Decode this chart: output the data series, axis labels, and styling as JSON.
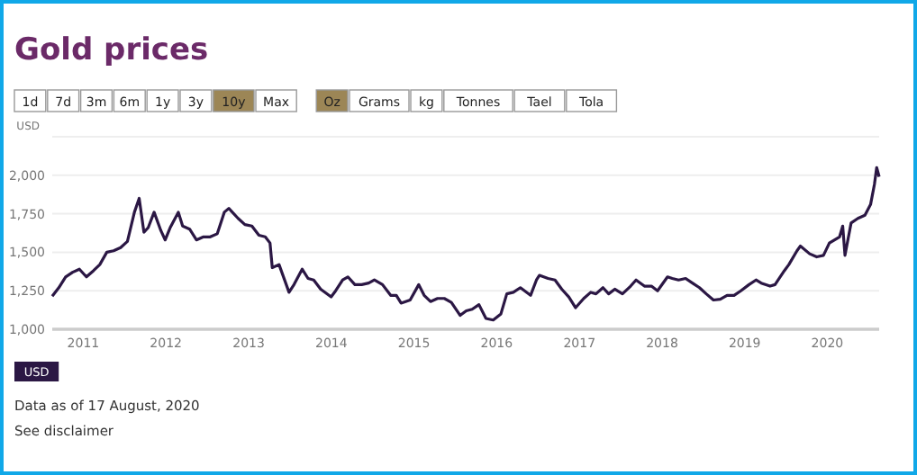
{
  "chart_data": {
    "type": "line",
    "title": "Gold prices",
    "ylabel": "USD",
    "annotations": [
      "1d",
      "7d",
      "3m",
      "6m",
      "1y",
      "3y",
      "10y",
      "Max",
      "Oz",
      "Grams",
      "kg",
      "Tonnes",
      "Tael",
      "Tola",
      "USD",
      "Data as of 17 August, 2020",
      "See disclaimer"
    ],
    "x": [
      "2010-08-17",
      "2010-09-15",
      "2010-10-15",
      "2010-11-15",
      "2010-12-15",
      "2011-01-15",
      "2011-02-15",
      "2011-03-15",
      "2011-04-15",
      "2011-05-15",
      "2011-06-15",
      "2011-07-15",
      "2011-08-15",
      "2011-09-05",
      "2011-09-26",
      "2011-10-15",
      "2011-11-10",
      "2011-12-10",
      "2011-12-29",
      "2012-01-20",
      "2012-02-25",
      "2012-03-15",
      "2012-04-15",
      "2012-05-15",
      "2012-06-15",
      "2012-07-15",
      "2012-08-15",
      "2012-09-15",
      "2012-10-05",
      "2012-11-15",
      "2012-12-15",
      "2013-01-15",
      "2013-02-15",
      "2013-03-15",
      "2013-04-05",
      "2013-04-15",
      "2013-05-15",
      "2013-06-28",
      "2013-07-20",
      "2013-08-25",
      "2013-09-20",
      "2013-10-15",
      "2013-11-15",
      "2013-12-31",
      "2014-01-20",
      "2014-02-20",
      "2014-03-15",
      "2014-04-15",
      "2014-05-15",
      "2014-06-15",
      "2014-07-10",
      "2014-08-15",
      "2014-09-20",
      "2014-10-15",
      "2014-11-05",
      "2014-12-15",
      "2015-01-22",
      "2015-02-15",
      "2015-03-15",
      "2015-04-15",
      "2015-05-15",
      "2015-06-15",
      "2015-07-24",
      "2015-08-20",
      "2015-09-15",
      "2015-10-15",
      "2015-11-15",
      "2015-12-17",
      "2016-01-20",
      "2016-02-15",
      "2016-03-15",
      "2016-04-15",
      "2016-05-30",
      "2016-06-25",
      "2016-07-08",
      "2016-08-15",
      "2016-09-15",
      "2016-10-15",
      "2016-11-15",
      "2016-12-15",
      "2017-01-20",
      "2017-02-20",
      "2017-03-15",
      "2017-04-15",
      "2017-05-10",
      "2017-06-06",
      "2017-07-10",
      "2017-08-15",
      "2017-09-08",
      "2017-10-15",
      "2017-11-15",
      "2017-12-12",
      "2018-01-25",
      "2018-02-15",
      "2018-03-15",
      "2018-04-15",
      "2018-05-15",
      "2018-06-15",
      "2018-07-15",
      "2018-08-16",
      "2018-09-15",
      "2018-10-15",
      "2018-11-15",
      "2018-12-15",
      "2019-01-20",
      "2019-02-20",
      "2019-03-15",
      "2019-04-23",
      "2019-05-15",
      "2019-06-25",
      "2019-07-15",
      "2019-08-20",
      "2019-09-04",
      "2019-10-15",
      "2019-11-15",
      "2019-12-15",
      "2020-01-10",
      "2020-02-24",
      "2020-03-09",
      "2020-03-19",
      "2020-04-15",
      "2020-05-15",
      "2020-06-15",
      "2020-07-10",
      "2020-07-27",
      "2020-08-06",
      "2020-08-17"
    ],
    "series": [
      {
        "color": "#2b1744",
        "values": [
          1215,
          1270,
          1340,
          1370,
          1390,
          1340,
          1380,
          1420,
          1500,
          1510,
          1530,
          1570,
          1760,
          1850,
          1630,
          1660,
          1760,
          1640,
          1580,
          1660,
          1760,
          1670,
          1650,
          1580,
          1600,
          1600,
          1620,
          1760,
          1785,
          1720,
          1680,
          1670,
          1610,
          1600,
          1560,
          1400,
          1420,
          1240,
          1290,
          1390,
          1330,
          1320,
          1260,
          1210,
          1250,
          1320,
          1340,
          1290,
          1290,
          1300,
          1320,
          1290,
          1220,
          1220,
          1170,
          1190,
          1290,
          1220,
          1180,
          1200,
          1200,
          1175,
          1090,
          1120,
          1130,
          1160,
          1070,
          1060,
          1100,
          1230,
          1240,
          1270,
          1220,
          1320,
          1350,
          1330,
          1320,
          1260,
          1210,
          1140,
          1200,
          1240,
          1230,
          1270,
          1230,
          1260,
          1230,
          1280,
          1320,
          1280,
          1280,
          1250,
          1340,
          1330,
          1320,
          1330,
          1300,
          1270,
          1230,
          1190,
          1195,
          1220,
          1220,
          1250,
          1290,
          1320,
          1300,
          1280,
          1290,
          1380,
          1420,
          1510,
          1540,
          1490,
          1470,
          1480,
          1560,
          1600,
          1670,
          1480,
          1690,
          1720,
          1740,
          1810,
          1940,
          2050,
          1990
        ]
      }
    ],
    "xlim": [
      "2010-08-17",
      "2020-08-17"
    ],
    "xticks": [
      "2011",
      "2012",
      "2013",
      "2014",
      "2015",
      "2016",
      "2017",
      "2018",
      "2019",
      "2020"
    ],
    "ylim": [
      1000,
      2250
    ],
    "yticks": [
      {
        "value": 1000,
        "label": "1,000"
      },
      {
        "value": 1250,
        "label": "1,250"
      },
      {
        "value": 1500,
        "label": "1,500"
      },
      {
        "value": 1750,
        "label": "1,750"
      },
      {
        "value": 2000,
        "label": "2,000"
      },
      {
        "value": 2250,
        "label": null
      }
    ],
    "grid": "y",
    "marker": "none",
    "line_style": "solid"
  }
}
